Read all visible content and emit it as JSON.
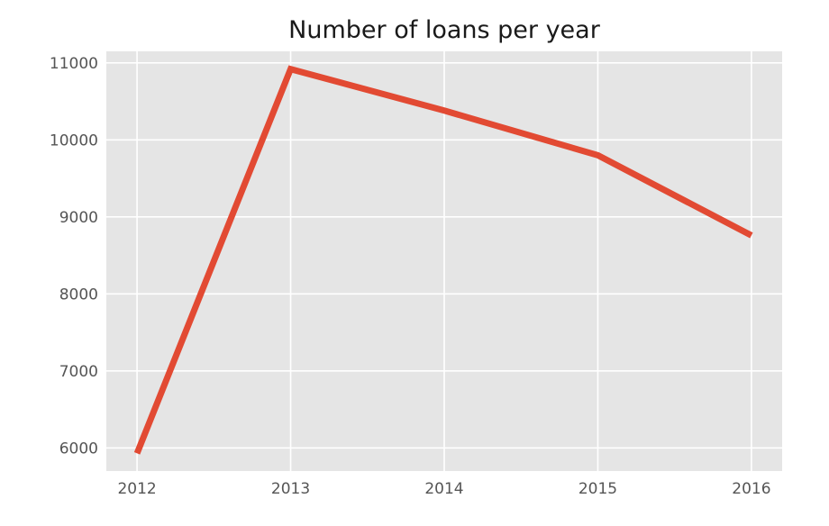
{
  "chart_data": {
    "type": "line",
    "title": "Number of loans per year",
    "xlabel": "",
    "ylabel": "",
    "x": [
      2012,
      2013,
      2014,
      2015,
      2016
    ],
    "series": [
      {
        "values": [
          5930,
          10920,
          10380,
          9800,
          8760
        ],
        "color": "#e24a33"
      }
    ],
    "xticks": [
      "2012",
      "2013",
      "2014",
      "2015",
      "2016"
    ],
    "yticks": [
      "6000",
      "7000",
      "8000",
      "9000",
      "10000",
      "11000"
    ],
    "xlim": [
      2011.8,
      2016.2
    ],
    "ylim": [
      5700,
      11150
    ],
    "grid": true,
    "legend": "none",
    "style": {
      "plot_background": "#e5e5e5",
      "grid_color": "#ffffff",
      "tick_color": "#555555",
      "title_color": "#1a1a1a"
    }
  }
}
